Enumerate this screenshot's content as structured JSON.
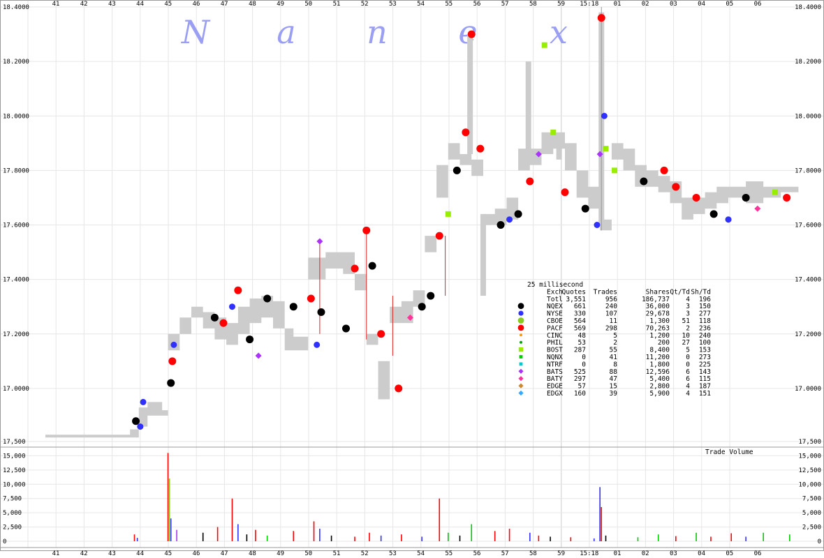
{
  "watermark": [
    "N",
    "a",
    "n",
    "e",
    "x"
  ],
  "chart_data": [
    {
      "type": "scatter",
      "x_ticks": [
        "41",
        "42",
        "43",
        "44",
        "45",
        "46",
        "47",
        "48",
        "49",
        "50",
        "51",
        "52",
        "53",
        "54",
        "55",
        "56",
        "57",
        "58",
        "59",
        "15:18",
        "01",
        "02",
        "03",
        "04",
        "05",
        "06"
      ],
      "y_ticks": [
        "18.4000",
        "18.2000",
        "18.0000",
        "17.8000",
        "17.6000",
        "17.4000",
        "17.2000",
        "17.0000"
      ],
      "ylim": [
        16.8,
        18.4
      ],
      "nbbo_band": [
        [
          0.0,
          16.82,
          16.83
        ],
        [
          2.9,
          16.82,
          16.85
        ],
        [
          3.2,
          16.86,
          16.93
        ],
        [
          3.5,
          16.9,
          16.95
        ],
        [
          4.0,
          16.9,
          16.92
        ],
        [
          4.2,
          17.14,
          17.2
        ],
        [
          4.6,
          17.2,
          17.26
        ],
        [
          5.0,
          17.26,
          17.3
        ],
        [
          5.4,
          17.22,
          17.28
        ],
        [
          5.8,
          17.18,
          17.26
        ],
        [
          6.2,
          17.16,
          17.24
        ],
        [
          6.6,
          17.2,
          17.3
        ],
        [
          7.0,
          17.24,
          17.33
        ],
        [
          7.4,
          17.26,
          17.34
        ],
        [
          7.8,
          17.22,
          17.32
        ],
        [
          8.2,
          17.14,
          17.22
        ],
        [
          8.5,
          17.14,
          17.19
        ],
        [
          9.0,
          17.4,
          17.48
        ],
        [
          9.6,
          17.44,
          17.5
        ],
        [
          10.2,
          17.42,
          17.5
        ],
        [
          10.6,
          17.36,
          17.42
        ],
        [
          11.0,
          17.16,
          17.2
        ],
        [
          11.4,
          16.96,
          17.1
        ],
        [
          11.8,
          17.24,
          17.3
        ],
        [
          12.2,
          17.24,
          17.32
        ],
        [
          12.6,
          17.3,
          17.36
        ],
        [
          13.0,
          17.5,
          17.56
        ],
        [
          13.4,
          17.7,
          17.82
        ],
        [
          13.8,
          17.84,
          17.9
        ],
        [
          14.2,
          17.82,
          17.86
        ],
        [
          14.6,
          17.78,
          17.84
        ],
        [
          15.0,
          17.6,
          17.64
        ],
        [
          15.4,
          17.6,
          17.66
        ],
        [
          15.8,
          17.62,
          17.7
        ],
        [
          16.2,
          17.8,
          17.88
        ],
        [
          16.6,
          17.82,
          17.88
        ],
        [
          17.0,
          17.86,
          17.94
        ],
        [
          17.4,
          17.88,
          17.94
        ],
        [
          17.8,
          17.8,
          17.9
        ],
        [
          18.2,
          17.7,
          17.8
        ],
        [
          18.6,
          17.66,
          17.74
        ],
        [
          19.0,
          17.58,
          17.62
        ],
        [
          19.4,
          17.84,
          17.9
        ],
        [
          19.8,
          17.8,
          17.88
        ],
        [
          20.2,
          17.74,
          17.82
        ],
        [
          20.6,
          17.74,
          17.8
        ],
        [
          21.0,
          17.72,
          17.78
        ],
        [
          21.4,
          17.68,
          17.76
        ],
        [
          21.8,
          17.62,
          17.7
        ],
        [
          22.2,
          17.64,
          17.7
        ],
        [
          22.6,
          17.66,
          17.72
        ],
        [
          23.0,
          17.68,
          17.74
        ],
        [
          23.4,
          17.7,
          17.74
        ],
        [
          24.0,
          17.68,
          17.76
        ],
        [
          24.6,
          17.7,
          17.74
        ],
        [
          25.2,
          17.72,
          17.74
        ]
      ],
      "bid_ask_spikes": [
        [
          14.55,
          17.86,
          18.3
        ],
        [
          16.55,
          17.86,
          18.2
        ],
        [
          15.0,
          17.34,
          17.64
        ],
        [
          17.6,
          17.84,
          17.92
        ],
        [
          19.05,
          17.6,
          18.38
        ]
      ],
      "trade_lines": [
        [
          9.4,
          17.2,
          17.54
        ],
        [
          11.0,
          17.18,
          17.58
        ],
        [
          11.9,
          17.12,
          17.34
        ],
        [
          13.7,
          17.34,
          17.56
        ]
      ],
      "quotes": [
        [
          3.1,
          16.88,
          "NQEX"
        ],
        [
          3.25,
          16.86,
          "NYSE"
        ],
        [
          3.35,
          16.95,
          "NYSE"
        ],
        [
          4.3,
          17.02,
          "NQEX"
        ],
        [
          4.35,
          17.1,
          "PACF"
        ],
        [
          4.4,
          17.16,
          "NYSE"
        ],
        [
          5.8,
          17.26,
          "NQEX"
        ],
        [
          6.1,
          17.24,
          "PACF"
        ],
        [
          6.4,
          17.3,
          "NYSE"
        ],
        [
          6.6,
          17.36,
          "PACF"
        ],
        [
          7.0,
          17.18,
          "NQEX"
        ],
        [
          7.3,
          17.12,
          "BATS"
        ],
        [
          7.6,
          17.33,
          "NQEX"
        ],
        [
          8.5,
          17.3,
          "NQEX"
        ],
        [
          9.1,
          17.33,
          "PACF"
        ],
        [
          9.3,
          17.16,
          "NYSE"
        ],
        [
          9.4,
          17.54,
          "BATS"
        ],
        [
          9.45,
          17.28,
          "NQEX"
        ],
        [
          10.3,
          17.22,
          "NQEX"
        ],
        [
          10.6,
          17.44,
          "PACF"
        ],
        [
          11.0,
          17.58,
          "PACF"
        ],
        [
          11.2,
          17.45,
          "NQEX"
        ],
        [
          11.5,
          17.2,
          "PACF"
        ],
        [
          12.1,
          17.0,
          "PACF"
        ],
        [
          12.5,
          17.26,
          "BATY"
        ],
        [
          12.9,
          17.3,
          "NQEX"
        ],
        [
          13.2,
          17.34,
          "NQEX"
        ],
        [
          13.5,
          17.56,
          "PACF"
        ],
        [
          13.8,
          17.64,
          "BOST"
        ],
        [
          14.1,
          17.8,
          "NQEX"
        ],
        [
          14.4,
          17.94,
          "PACF"
        ],
        [
          14.6,
          18.3,
          "PACF"
        ],
        [
          14.9,
          17.88,
          "PACF"
        ],
        [
          15.6,
          17.6,
          "NQEX"
        ],
        [
          15.9,
          17.62,
          "NYSE"
        ],
        [
          16.2,
          17.64,
          "NQEX"
        ],
        [
          16.6,
          17.76,
          "PACF"
        ],
        [
          16.9,
          17.86,
          "BATS"
        ],
        [
          17.1,
          18.26,
          "BOST"
        ],
        [
          17.4,
          17.94,
          "BOST"
        ],
        [
          17.8,
          17.72,
          "PACF"
        ],
        [
          18.5,
          17.66,
          "NQEX"
        ],
        [
          18.9,
          17.6,
          "NYSE"
        ],
        [
          19.0,
          17.86,
          "BATS"
        ],
        [
          19.05,
          18.36,
          "PACF"
        ],
        [
          19.15,
          18.0,
          "NYSE"
        ],
        [
          19.2,
          17.88,
          "BOST"
        ],
        [
          19.5,
          17.8,
          "BOST"
        ],
        [
          20.5,
          17.76,
          "NQEX"
        ],
        [
          21.2,
          17.8,
          "PACF"
        ],
        [
          21.6,
          17.74,
          "PACF"
        ],
        [
          22.3,
          17.7,
          "PACF"
        ],
        [
          22.9,
          17.64,
          "NQEX"
        ],
        [
          23.4,
          17.62,
          "NYSE"
        ],
        [
          24.0,
          17.7,
          "NQEX"
        ],
        [
          24.4,
          17.66,
          "BATY"
        ],
        [
          25.0,
          17.72,
          "BOST"
        ],
        [
          25.4,
          17.7,
          "PACF"
        ]
      ],
      "legend": {
        "title": "25 millisecond",
        "columns": [
          "Exch",
          "Quotes",
          "Trades",
          "Shares",
          "Qt/Td",
          "Sh/Td"
        ],
        "rows": [
          {
            "exch": "Totl",
            "quotes": "3,551",
            "trades": "956",
            "shares": "186,737",
            "qt_td": "4",
            "sh_td": "196",
            "color": "",
            "shape": "none"
          },
          {
            "exch": "NQEX",
            "quotes": "661",
            "trades": "240",
            "shares": "36,000",
            "qt_td": "3",
            "sh_td": "150",
            "color": "#000000",
            "shape": "big-circle"
          },
          {
            "exch": "NYSE",
            "quotes": "330",
            "trades": "107",
            "shares": "29,678",
            "qt_td": "3",
            "sh_td": "277",
            "color": "#3030ff",
            "shape": "circle"
          },
          {
            "exch": "CBOE",
            "quotes": "564",
            "trades": "11",
            "shares": "1,300",
            "qt_td": "51",
            "sh_td": "118",
            "color": "#88cc22",
            "shape": "big-circle"
          },
          {
            "exch": "PACF",
            "quotes": "569",
            "trades": "298",
            "shares": "70,263",
            "qt_td": "2",
            "sh_td": "236",
            "color": "#ff0000",
            "shape": "big-circle"
          },
          {
            "exch": "CINC",
            "quotes": "48",
            "trades": "5",
            "shares": "1,200",
            "qt_td": "10",
            "sh_td": "240",
            "color": "#ff9900",
            "shape": "dot"
          },
          {
            "exch": "PHIL",
            "quotes": "53",
            "trades": "2",
            "shares": "200",
            "qt_td": "27",
            "sh_td": "100",
            "color": "#00aa00",
            "shape": "dot"
          },
          {
            "exch": "BOST",
            "quotes": "287",
            "trades": "55",
            "shares": "8,400",
            "qt_td": "5",
            "sh_td": "153",
            "color": "#99ee00",
            "shape": "square"
          },
          {
            "exch": "NQNX",
            "quotes": "0",
            "trades": "41",
            "shares": "11,200",
            "qt_td": "0",
            "sh_td": "273",
            "color": "#00cc00",
            "shape": "small-square"
          },
          {
            "exch": "NTRF",
            "quotes": "0",
            "trades": "8",
            "shares": "1,800",
            "qt_td": "0",
            "sh_td": "225",
            "color": "#00cccc",
            "shape": "small-square"
          },
          {
            "exch": "BATS",
            "quotes": "525",
            "trades": "88",
            "shares": "12,596",
            "qt_td": "6",
            "sh_td": "143",
            "color": "#aa33ff",
            "shape": "diamond"
          },
          {
            "exch": "BATY",
            "quotes": "297",
            "trades": "47",
            "shares": "5,400",
            "qt_td": "6",
            "sh_td": "115",
            "color": "#ff3399",
            "shape": "diamond"
          },
          {
            "exch": "EDGE",
            "quotes": "57",
            "trades": "15",
            "shares": "2,800",
            "qt_td": "4",
            "sh_td": "187",
            "color": "#cc8833",
            "shape": "diamond"
          },
          {
            "exch": "EDGX",
            "quotes": "160",
            "trades": "39",
            "shares": "5,900",
            "qt_td": "4",
            "sh_td": "151",
            "color": "#33aaff",
            "shape": "diamond"
          }
        ]
      }
    },
    {
      "type": "bar",
      "title": "Trade Volume",
      "y_ticks": [
        "17,500",
        "15,000",
        "12,500",
        "10,000",
        "7,500",
        "5,000",
        "2,500",
        "0"
      ],
      "ylim": [
        0,
        17500
      ],
      "bars": [
        [
          3.05,
          1200,
          "#ff0000"
        ],
        [
          3.15,
          600,
          "#3030ff"
        ],
        [
          4.2,
          15500,
          "#ff0000"
        ],
        [
          4.25,
          11000,
          "#88cc22"
        ],
        [
          4.3,
          4000,
          "#3030ff"
        ],
        [
          4.5,
          2000,
          "#aa33ff"
        ],
        [
          5.4,
          1500,
          "#000000"
        ],
        [
          5.9,
          2500,
          "#ff0000"
        ],
        [
          6.4,
          7500,
          "#ff0000"
        ],
        [
          6.6,
          3000,
          "#3030ff"
        ],
        [
          6.9,
          1200,
          "#000000"
        ],
        [
          7.2,
          2000,
          "#ff0000"
        ],
        [
          7.6,
          1000,
          "#00cc00"
        ],
        [
          8.5,
          1800,
          "#ff0000"
        ],
        [
          9.2,
          3500,
          "#ff0000"
        ],
        [
          9.4,
          2200,
          "#3030ff"
        ],
        [
          9.8,
          1000,
          "#000000"
        ],
        [
          10.6,
          800,
          "#ff0000"
        ],
        [
          11.1,
          1500,
          "#ff0000"
        ],
        [
          11.5,
          1000,
          "#3030ff"
        ],
        [
          12.2,
          1200,
          "#ff0000"
        ],
        [
          12.9,
          800,
          "#3030ff"
        ],
        [
          13.5,
          7500,
          "#ff0000"
        ],
        [
          13.8,
          1500,
          "#00cc00"
        ],
        [
          14.2,
          1000,
          "#000000"
        ],
        [
          14.6,
          3000,
          "#00cc00"
        ],
        [
          15.4,
          1800,
          "#ff0000"
        ],
        [
          15.9,
          2200,
          "#ff0000"
        ],
        [
          16.6,
          1500,
          "#3030ff"
        ],
        [
          16.9,
          1000,
          "#ff0000"
        ],
        [
          17.3,
          800,
          "#000000"
        ],
        [
          18.0,
          700,
          "#ff0000"
        ],
        [
          18.8,
          500,
          "#3030ff"
        ],
        [
          19.0,
          9500,
          "#3030ff"
        ],
        [
          19.05,
          6000,
          "#ff0000"
        ],
        [
          19.2,
          1000,
          "#000000"
        ],
        [
          20.3,
          700,
          "#00cc00"
        ],
        [
          21.0,
          1200,
          "#00cc00"
        ],
        [
          21.6,
          900,
          "#ff0000"
        ],
        [
          22.3,
          1500,
          "#00cc00"
        ],
        [
          22.8,
          800,
          "#ff0000"
        ],
        [
          23.5,
          1400,
          "#ff0000"
        ],
        [
          24.0,
          800,
          "#3030ff"
        ],
        [
          24.6,
          1500,
          "#00cc00"
        ],
        [
          25.5,
          1200,
          "#00cc00"
        ]
      ]
    }
  ]
}
